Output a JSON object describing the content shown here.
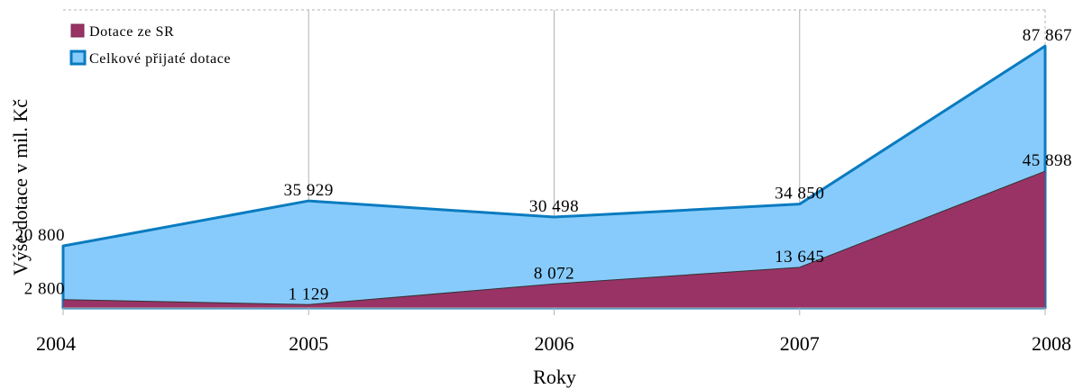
{
  "chart_data": {
    "type": "area",
    "categories": [
      "2004",
      "2005",
      "2006",
      "2007",
      "2008"
    ],
    "series": [
      {
        "name": "Dotace ze SR",
        "values": [
          2800,
          1129,
          8072,
          13645,
          45898
        ],
        "labels": [
          "2 800",
          "1 129",
          "8 072",
          "13 645",
          "45 898"
        ],
        "color": "#993366"
      },
      {
        "name": "Celkové přijaté dotace",
        "values": [
          20800,
          35929,
          30498,
          34850,
          87867
        ],
        "labels": [
          "20 800",
          "35 929",
          "30 498",
          "34 850",
          "87 867"
        ],
        "color": "#87cbfc",
        "line_color": "#0a7bbf"
      }
    ],
    "xlabel": "Roky",
    "ylabel": "Výše dotace v mil. Kč",
    "ylim": [
      0,
      100000
    ],
    "grid": true,
    "legend": "top-left"
  }
}
